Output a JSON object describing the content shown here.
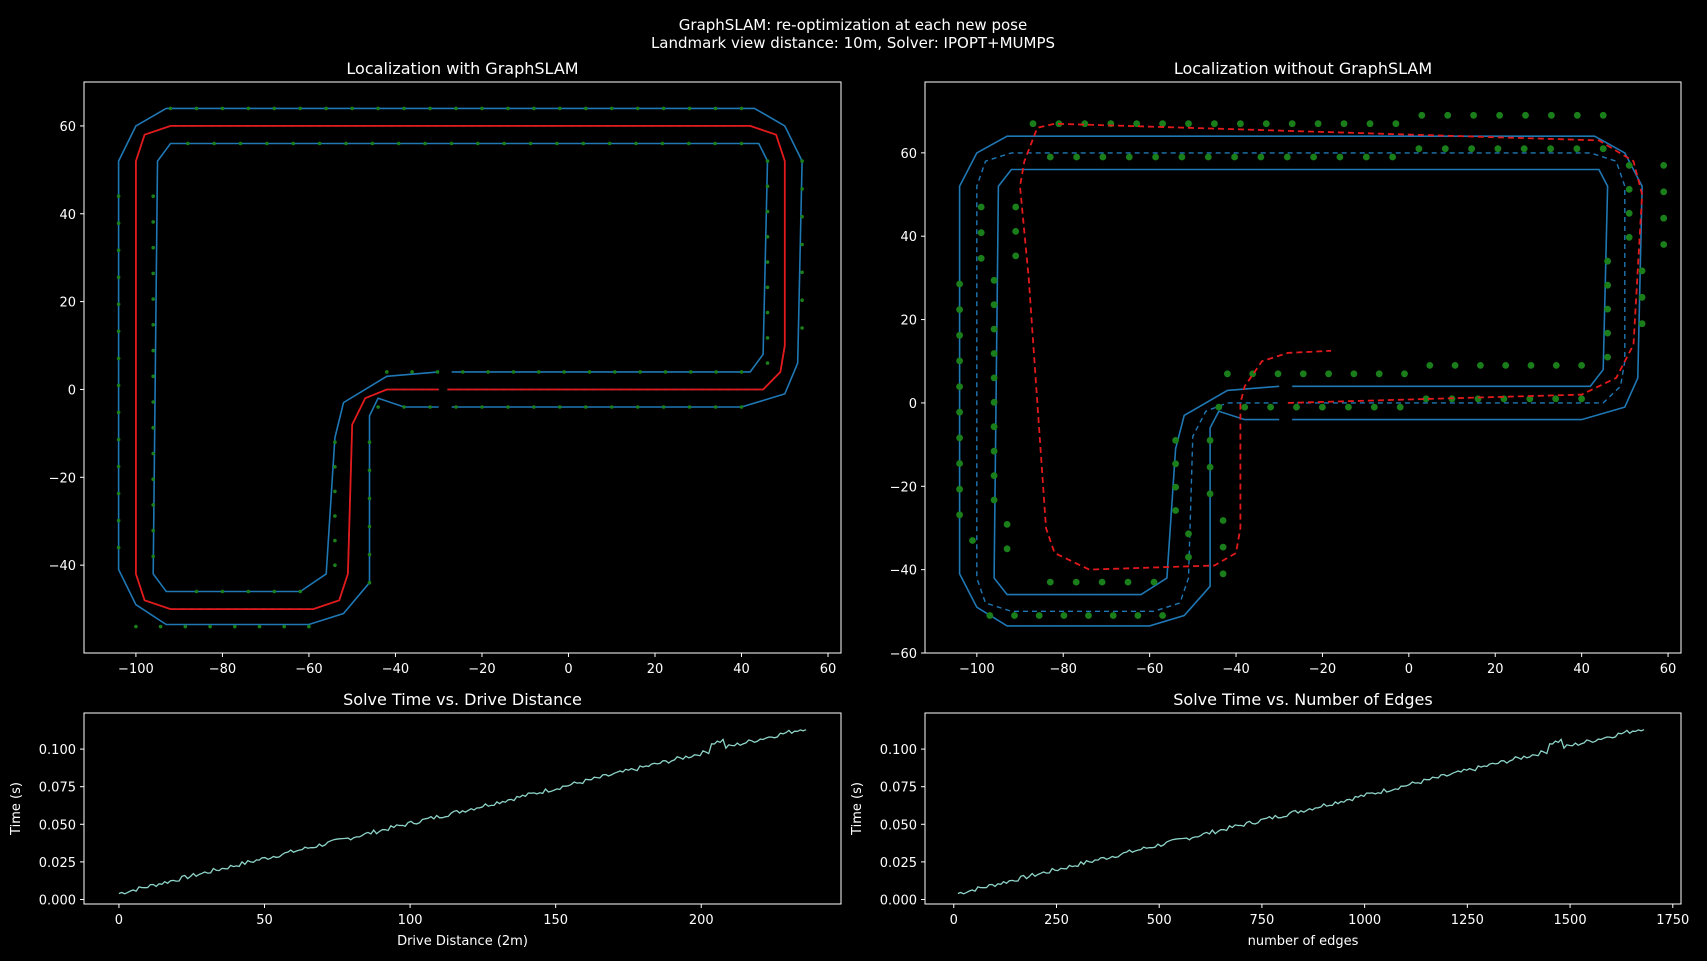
{
  "figure": {
    "title_line1": "GraphSLAM: re-optimization at each new pose",
    "title_line2": "Landmark view distance: 10m, Solver: IPOPT+MUMPS",
    "colors": {
      "background": "#000000",
      "track": "#1f77b4",
      "estimate": "#d62728",
      "landmarks": "#2ca02c",
      "timing": "#8dd3c7",
      "axes": "#ffffff"
    }
  },
  "chart_data": [
    {
      "id": "with",
      "type": "line",
      "title": "Localization with GraphSLAM",
      "xlabel": "",
      "ylabel": "",
      "xlim": [
        -112,
        63
      ],
      "ylim": [
        -60,
        70
      ],
      "xticks": [
        -100,
        -80,
        -60,
        -40,
        -20,
        0,
        20,
        40,
        60
      ],
      "yticks": [
        -40,
        -20,
        0,
        20,
        40,
        60
      ],
      "series": [
        {
          "role": "track-outer",
          "style": "solid",
          "color": "#1f77b4",
          "x": [
            -29,
            -104,
            -104,
            -100,
            -93,
            43,
            50,
            54,
            54,
            50,
            46,
            40,
            -30
          ],
          "y": [
            4,
            4,
            52,
            60,
            64,
            64,
            60,
            52,
            -1,
            -8,
            -4,
            4,
            4
          ],
          "xy": [
            [
              -29,
              4
            ],
            [
              -42,
              3
            ],
            [
              -52,
              -3
            ],
            [
              -54,
              -11
            ],
            [
              -54,
              -41
            ],
            [
              -56,
              -45
            ],
            [
              -60,
              -46
            ],
            [
              -95,
              -46
            ],
            [
              -98,
              -42
            ],
            [
              -100,
              -41
            ]
          ]
        },
        {
          "role": "track-centerline",
          "style": "dashed",
          "color": "#1f77b4",
          "xy": [
            [
              -28,
              0
            ],
            [
              45,
              0
            ],
            [
              49,
              4
            ],
            [
              50,
              10
            ],
            [
              50,
              52
            ],
            [
              48,
              58
            ],
            [
              42,
              60
            ],
            [
              -92,
              60
            ],
            [
              -98,
              58
            ],
            [
              -100,
              52
            ],
            [
              -100,
              -42
            ],
            [
              -98,
              -48
            ],
            [
              -92,
              -50
            ],
            [
              -59,
              -50
            ],
            [
              -53,
              -48
            ],
            [
              -51,
              -42
            ],
            [
              -50,
              -8
            ],
            [
              -47,
              -2
            ],
            [
              -42,
              0
            ],
            [
              -30,
              0
            ]
          ]
        },
        {
          "role": "estimate",
          "style": "dashed",
          "color": "#d62728",
          "xy": [
            [
              -28,
              0
            ],
            [
              45,
              0
            ],
            [
              49,
              4
            ],
            [
              50,
              10
            ],
            [
              50,
              52
            ],
            [
              48,
              58
            ],
            [
              42,
              60
            ],
            [
              -92,
              60
            ],
            [
              -98,
              58
            ],
            [
              -100,
              52
            ],
            [
              -100,
              -42
            ],
            [
              -98,
              -48
            ],
            [
              -92,
              -50
            ],
            [
              -59,
              -50
            ],
            [
              -53,
              -48
            ],
            [
              -51,
              -42
            ],
            [
              -50,
              -8
            ],
            [
              -47,
              -2
            ],
            [
              -42,
              0
            ],
            [
              -30,
              0
            ]
          ]
        },
        {
          "role": "landmarks",
          "style": "markers",
          "color": "#2ca02c"
        }
      ]
    },
    {
      "id": "without",
      "type": "line",
      "title": "Localization without GraphSLAM",
      "xlabel": "",
      "ylabel": "",
      "xlim": [
        -112,
        63
      ],
      "ylim": [
        -60,
        77
      ],
      "xticks": [
        -100,
        -80,
        -60,
        -40,
        -20,
        0,
        20,
        40,
        60
      ],
      "yticks": [
        -60,
        -40,
        -20,
        0,
        20,
        40,
        60
      ],
      "series": [
        {
          "role": "track",
          "style": "solid",
          "color": "#1f77b4"
        },
        {
          "role": "track-centerline",
          "style": "dashed",
          "color": "#1f77b4"
        },
        {
          "role": "estimate",
          "style": "dashed",
          "color": "#d62728",
          "xy": [
            [
              -28,
              0
            ],
            [
              40,
              2
            ],
            [
              48,
              6
            ],
            [
              52,
              14
            ],
            [
              54,
              50
            ],
            [
              52,
              58
            ],
            [
              44,
              63
            ],
            [
              -82,
              67
            ],
            [
              -86,
              66
            ],
            [
              -89,
              58
            ],
            [
              -90,
              52
            ],
            [
              -88,
              30
            ],
            [
              -84,
              -30
            ],
            [
              -82,
              -36
            ],
            [
              -74,
              -40
            ],
            [
              -45,
              -39
            ],
            [
              -40,
              -36
            ],
            [
              -39,
              -30
            ],
            [
              -39,
              0
            ],
            [
              -38,
              4
            ],
            [
              -34,
              10
            ],
            [
              -28,
              12
            ],
            [
              -18,
              12.5
            ]
          ]
        },
        {
          "role": "landmarks",
          "style": "markers",
          "color": "#2ca02c"
        }
      ]
    },
    {
      "id": "timeDist",
      "type": "line",
      "title": "Solve Time vs. Drive Distance",
      "xlabel": "Drive Distance (2m)",
      "ylabel": "Time (s)",
      "xlim": [
        -12,
        248
      ],
      "ylim": [
        -0.003,
        0.124
      ],
      "xticks": [
        0,
        50,
        100,
        150,
        200
      ],
      "yticks": [
        0.0,
        0.025,
        0.05,
        0.075,
        0.1
      ],
      "x_start": 0,
      "x_end": 236,
      "y_start": 0.004,
      "y_end": 0.114,
      "notes": "solve time grows roughly linearly from 0.004 s to 0.115 s with small noise; bump near x≈206"
    },
    {
      "id": "timeEdges",
      "type": "line",
      "title": "Solve Time vs. Number of Edges",
      "xlabel": "number of edges",
      "ylabel": "Time (s)",
      "xlim": [
        -70,
        1770
      ],
      "ylim": [
        -0.003,
        0.124
      ],
      "xticks": [
        0,
        250,
        500,
        750,
        1000,
        1250,
        1500,
        1750
      ],
      "yticks": [
        0.0,
        0.025,
        0.05,
        0.075,
        0.1
      ],
      "x_start": 10,
      "x_end": 1680,
      "y_start": 0.004,
      "y_end": 0.114
    }
  ]
}
